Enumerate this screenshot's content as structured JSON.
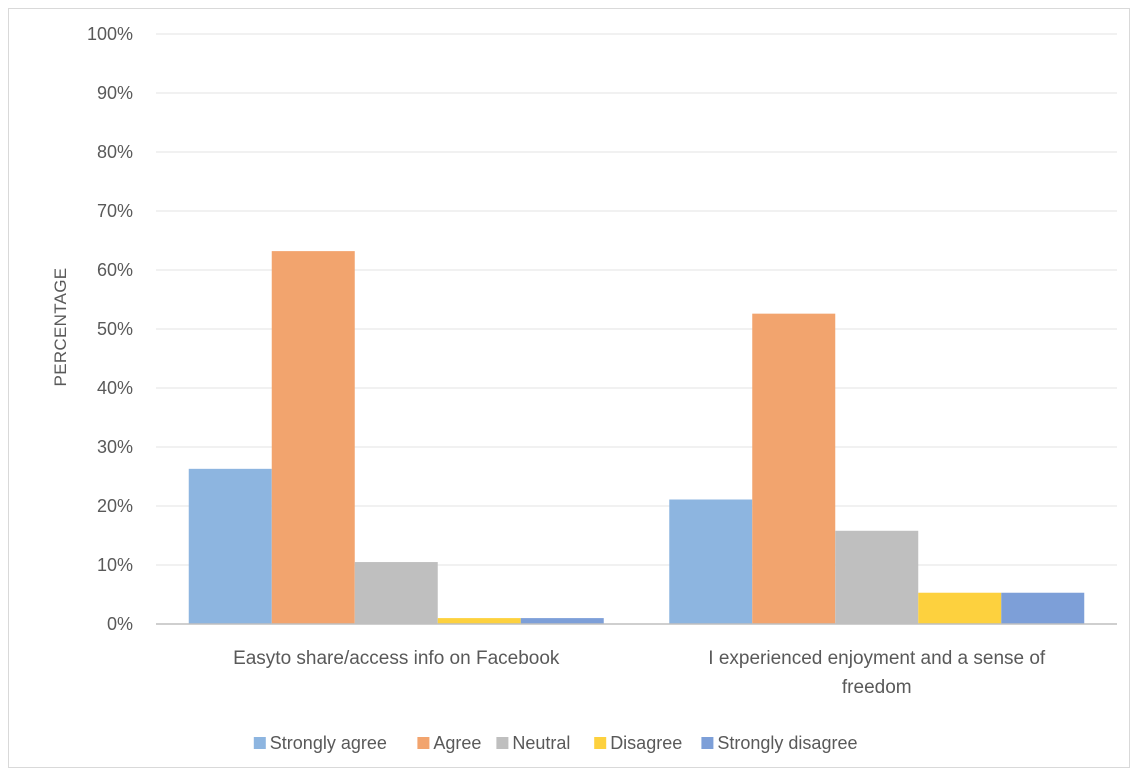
{
  "chart_data": {
    "type": "bar",
    "title": "",
    "xlabel": "",
    "ylabel": "PERCENTAGE",
    "ylim": [
      0,
      100
    ],
    "y_ticks": [
      "0%",
      "10%",
      "20%",
      "30%",
      "40%",
      "50%",
      "60%",
      "70%",
      "80%",
      "90%",
      "100%"
    ],
    "y_tick_values": [
      0,
      10,
      20,
      30,
      40,
      50,
      60,
      70,
      80,
      90,
      100
    ],
    "grid": true,
    "legend_position": "bottom",
    "categories": [
      [
        "Easyto share/access info on Facebook"
      ],
      [
        "I experienced enjoyment and a sense of",
        "freedom"
      ]
    ],
    "series": [
      {
        "name": "Strongly agree",
        "color": "#8db5e0",
        "values": [
          26.3,
          21.1
        ]
      },
      {
        "name": "Agree",
        "color": "#f2a46e",
        "values": [
          63.2,
          52.6
        ]
      },
      {
        "name": "Neutral",
        "color": "#bfbfbf",
        "values": [
          10.5,
          15.8
        ]
      },
      {
        "name": "Disagree",
        "color": "#fdd13e",
        "values": [
          1.0,
          5.3
        ]
      },
      {
        "name": "Strongly disagree",
        "color": "#7d9fd8",
        "values": [
          1.0,
          5.3
        ]
      }
    ]
  }
}
